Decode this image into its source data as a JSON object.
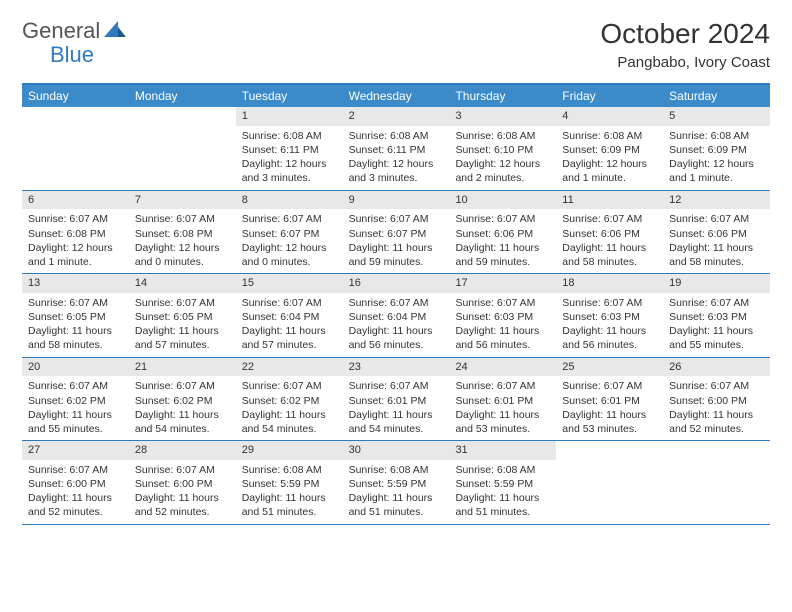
{
  "logo": {
    "text1": "General",
    "text2": "Blue",
    "icon_fill": "#2f7bbf"
  },
  "title": "October 2024",
  "location": "Pangbabo, Ivory Coast",
  "colors": {
    "header_bar": "#3b8bca",
    "top_border": "#2f7bbf",
    "row_border": "#2f7bbf",
    "daynum_bg": "#e8e8e8",
    "text": "#333333",
    "bg": "#ffffff"
  },
  "fonts": {
    "title_size": 28,
    "location_size": 15,
    "dow_size": 12,
    "body_size": 10.5
  },
  "days_of_week": [
    "Sunday",
    "Monday",
    "Tuesday",
    "Wednesday",
    "Thursday",
    "Friday",
    "Saturday"
  ],
  "weeks": [
    [
      null,
      null,
      {
        "n": "1",
        "sunrise": "6:08 AM",
        "sunset": "6:11 PM",
        "daylight": "12 hours and 3 minutes."
      },
      {
        "n": "2",
        "sunrise": "6:08 AM",
        "sunset": "6:11 PM",
        "daylight": "12 hours and 3 minutes."
      },
      {
        "n": "3",
        "sunrise": "6:08 AM",
        "sunset": "6:10 PM",
        "daylight": "12 hours and 2 minutes."
      },
      {
        "n": "4",
        "sunrise": "6:08 AM",
        "sunset": "6:09 PM",
        "daylight": "12 hours and 1 minute."
      },
      {
        "n": "5",
        "sunrise": "6:08 AM",
        "sunset": "6:09 PM",
        "daylight": "12 hours and 1 minute."
      }
    ],
    [
      {
        "n": "6",
        "sunrise": "6:07 AM",
        "sunset": "6:08 PM",
        "daylight": "12 hours and 1 minute."
      },
      {
        "n": "7",
        "sunrise": "6:07 AM",
        "sunset": "6:08 PM",
        "daylight": "12 hours and 0 minutes."
      },
      {
        "n": "8",
        "sunrise": "6:07 AM",
        "sunset": "6:07 PM",
        "daylight": "12 hours and 0 minutes."
      },
      {
        "n": "9",
        "sunrise": "6:07 AM",
        "sunset": "6:07 PM",
        "daylight": "11 hours and 59 minutes."
      },
      {
        "n": "10",
        "sunrise": "6:07 AM",
        "sunset": "6:06 PM",
        "daylight": "11 hours and 59 minutes."
      },
      {
        "n": "11",
        "sunrise": "6:07 AM",
        "sunset": "6:06 PM",
        "daylight": "11 hours and 58 minutes."
      },
      {
        "n": "12",
        "sunrise": "6:07 AM",
        "sunset": "6:06 PM",
        "daylight": "11 hours and 58 minutes."
      }
    ],
    [
      {
        "n": "13",
        "sunrise": "6:07 AM",
        "sunset": "6:05 PM",
        "daylight": "11 hours and 58 minutes."
      },
      {
        "n": "14",
        "sunrise": "6:07 AM",
        "sunset": "6:05 PM",
        "daylight": "11 hours and 57 minutes."
      },
      {
        "n": "15",
        "sunrise": "6:07 AM",
        "sunset": "6:04 PM",
        "daylight": "11 hours and 57 minutes."
      },
      {
        "n": "16",
        "sunrise": "6:07 AM",
        "sunset": "6:04 PM",
        "daylight": "11 hours and 56 minutes."
      },
      {
        "n": "17",
        "sunrise": "6:07 AM",
        "sunset": "6:03 PM",
        "daylight": "11 hours and 56 minutes."
      },
      {
        "n": "18",
        "sunrise": "6:07 AM",
        "sunset": "6:03 PM",
        "daylight": "11 hours and 56 minutes."
      },
      {
        "n": "19",
        "sunrise": "6:07 AM",
        "sunset": "6:03 PM",
        "daylight": "11 hours and 55 minutes."
      }
    ],
    [
      {
        "n": "20",
        "sunrise": "6:07 AM",
        "sunset": "6:02 PM",
        "daylight": "11 hours and 55 minutes."
      },
      {
        "n": "21",
        "sunrise": "6:07 AM",
        "sunset": "6:02 PM",
        "daylight": "11 hours and 54 minutes."
      },
      {
        "n": "22",
        "sunrise": "6:07 AM",
        "sunset": "6:02 PM",
        "daylight": "11 hours and 54 minutes."
      },
      {
        "n": "23",
        "sunrise": "6:07 AM",
        "sunset": "6:01 PM",
        "daylight": "11 hours and 54 minutes."
      },
      {
        "n": "24",
        "sunrise": "6:07 AM",
        "sunset": "6:01 PM",
        "daylight": "11 hours and 53 minutes."
      },
      {
        "n": "25",
        "sunrise": "6:07 AM",
        "sunset": "6:01 PM",
        "daylight": "11 hours and 53 minutes."
      },
      {
        "n": "26",
        "sunrise": "6:07 AM",
        "sunset": "6:00 PM",
        "daylight": "11 hours and 52 minutes."
      }
    ],
    [
      {
        "n": "27",
        "sunrise": "6:07 AM",
        "sunset": "6:00 PM",
        "daylight": "11 hours and 52 minutes."
      },
      {
        "n": "28",
        "sunrise": "6:07 AM",
        "sunset": "6:00 PM",
        "daylight": "11 hours and 52 minutes."
      },
      {
        "n": "29",
        "sunrise": "6:08 AM",
        "sunset": "5:59 PM",
        "daylight": "11 hours and 51 minutes."
      },
      {
        "n": "30",
        "sunrise": "6:08 AM",
        "sunset": "5:59 PM",
        "daylight": "11 hours and 51 minutes."
      },
      {
        "n": "31",
        "sunrise": "6:08 AM",
        "sunset": "5:59 PM",
        "daylight": "11 hours and 51 minutes."
      },
      null,
      null
    ]
  ],
  "labels": {
    "sunrise": "Sunrise:",
    "sunset": "Sunset:",
    "daylight": "Daylight:"
  }
}
